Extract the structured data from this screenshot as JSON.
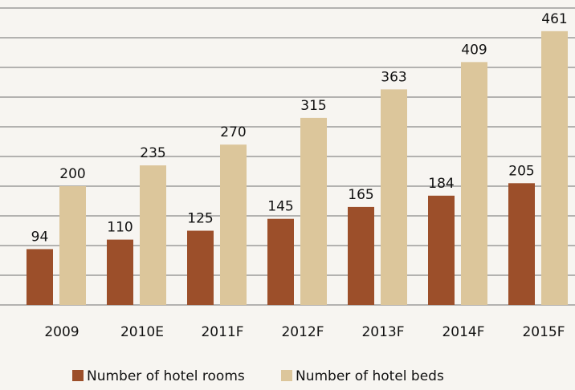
{
  "chart_data": {
    "type": "bar",
    "categories": [
      "2009",
      "2010E",
      "2011F",
      "2012F",
      "2013F",
      "2014F",
      "2015F"
    ],
    "series": [
      {
        "name": "Number of hotel rooms",
        "color": "#9c4f2a",
        "values": [
          94,
          110,
          125,
          145,
          165,
          184,
          205
        ]
      },
      {
        "name": "Number of hotel beds",
        "color": "#dcc69b",
        "values": [
          200,
          235,
          270,
          315,
          363,
          409,
          461
        ]
      }
    ],
    "ylim": [
      0,
      500
    ],
    "yticks": [
      0,
      50,
      100,
      150,
      200,
      250,
      300,
      350,
      400,
      450,
      500
    ],
    "grid": true
  }
}
